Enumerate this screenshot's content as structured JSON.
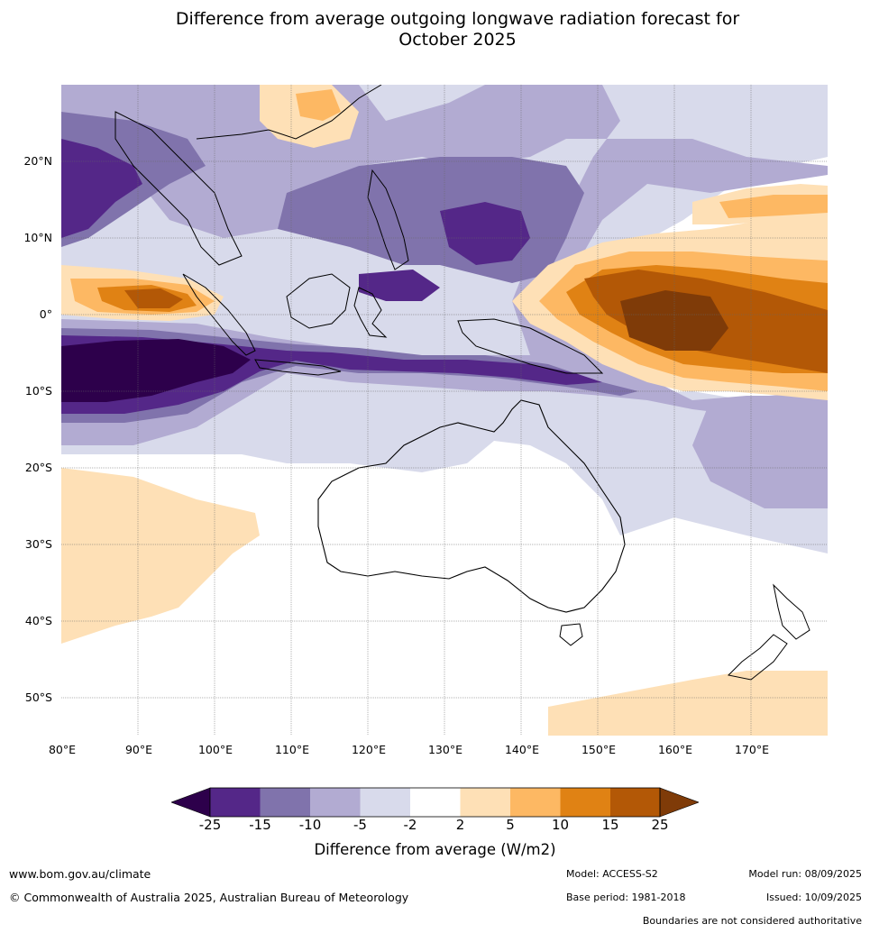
{
  "title_line1": "Difference from average outgoing longwave radiation forecast for",
  "title_line2": "October 2025",
  "map": {
    "lon_range": [
      80,
      180
    ],
    "lat_range": [
      -55,
      30
    ],
    "latitude_labels": [
      "20°N",
      "10°N",
      "0°",
      "10°S",
      "20°S",
      "30°S",
      "40°S",
      "50°S"
    ],
    "longitude_labels": [
      "80°E",
      "90°E",
      "100°E",
      "110°E",
      "120°E",
      "130°E",
      "140°E",
      "150°E",
      "160°E",
      "170°E"
    ]
  },
  "colorbar": {
    "title": "Difference from average (W/m2)",
    "tick_labels": [
      "-25",
      "-15",
      "-10",
      "-5",
      "-2",
      "2",
      "5",
      "10",
      "15",
      "25"
    ],
    "colors": [
      "#2d004b",
      "#542788",
      "#8073ac",
      "#b2abd2",
      "#d8daeb",
      "#ffffff",
      "#fee0b6",
      "#fdb863",
      "#e08214",
      "#b35806",
      "#7f3b08"
    ]
  },
  "footer": {
    "website": "www.bom.gov.au/climate",
    "copyright": "© Commonwealth of Australia 2025, Australian Bureau of Meteorology",
    "model": "Model: ACCESS-S2",
    "base_period": "Base period: 1981-2018",
    "model_run": "Model run: 08/09/2025",
    "issued": "Issued: 10/09/2025",
    "disclaimer": "Boundaries are not considered authoritative"
  }
}
